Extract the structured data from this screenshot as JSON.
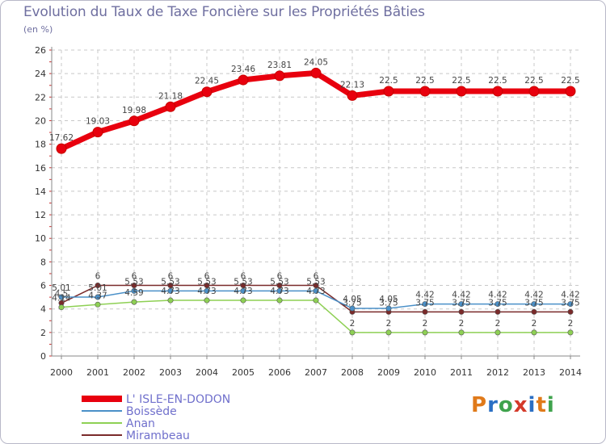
{
  "header": {
    "title": "Evolution du Taux de Taxe Foncière sur les Propriétés Bâties",
    "unit": "(en %)"
  },
  "logo": {
    "text": "Proxiti",
    "letters": [
      "P",
      "r",
      "o",
      "x",
      "i",
      "t",
      "i"
    ],
    "colors": [
      "#e07a1a",
      "#2a6fc4",
      "#3fa34d",
      "#d43a2a",
      "#2a6fc4",
      "#e07a1a",
      "#3fa34d"
    ]
  },
  "chart_data": {
    "type": "line",
    "title": "Evolution du Taux de Taxe Foncière sur les Propriétés Bâties",
    "ylabel": "(en %)",
    "xlabel": "",
    "ylim": [
      0,
      26
    ],
    "yticks": [
      "0",
      "2",
      "4",
      "6",
      "8",
      "10",
      "12",
      "14",
      "16",
      "18",
      "20",
      "22",
      "24",
      "26"
    ],
    "categories": [
      "2000",
      "2001",
      "2002",
      "2003",
      "2004",
      "2005",
      "2006",
      "2007",
      "2008",
      "2009",
      "2010",
      "2011",
      "2012",
      "2013",
      "2014"
    ],
    "grid": true,
    "legend_position": "bottom-left",
    "series": [
      {
        "name": "L' ISLE-EN-DODON",
        "color": "#e8000e",
        "values": [
          17.62,
          19.03,
          19.98,
          21.18,
          22.45,
          23.46,
          23.81,
          24.05,
          22.13,
          22.5,
          22.5,
          22.5,
          22.5,
          22.5,
          22.5
        ],
        "labels": [
          "17.62",
          "19.03",
          "19.98",
          "21.18",
          "22.45",
          "23.46",
          "23.81",
          "24.05",
          "22.13",
          "22.5",
          "22.5",
          "22.5",
          "22.5",
          "22.5",
          "22.5"
        ]
      },
      {
        "name": "Boissède",
        "color": "#4a90c8",
        "values": [
          5.01,
          5.01,
          5.53,
          5.53,
          5.53,
          5.53,
          5.53,
          5.53,
          4.05,
          4.05,
          4.42,
          4.42,
          4.42,
          4.42,
          4.42
        ],
        "labels": [
          "5.01",
          "5.01",
          "5.53",
          "5.53",
          "5.53",
          "5.53",
          "5.53",
          "5.53",
          "4.05",
          "4.05",
          "4.42",
          "4.42",
          "4.42",
          "4.42",
          "4.42"
        ]
      },
      {
        "name": "Anan",
        "color": "#8ed054",
        "values": [
          4.14,
          4.37,
          4.59,
          4.73,
          4.73,
          4.73,
          4.73,
          4.73,
          2,
          2,
          2,
          2,
          2,
          2,
          2
        ],
        "labels": [
          "4.14",
          "4.37",
          "4.59",
          "4.73",
          "4.73",
          "4.73",
          "4.73",
          "4.73",
          "2",
          "2",
          "2",
          "2",
          "2",
          "2",
          "2"
        ]
      },
      {
        "name": "Mirambeau",
        "color": "#7a2a2a",
        "values": [
          4.5,
          6,
          6,
          6,
          6,
          6,
          6,
          6,
          3.75,
          3.75,
          3.75,
          3.75,
          3.75,
          3.75,
          3.75
        ],
        "labels": [
          "4.5",
          "6",
          "6",
          "6",
          "6",
          "6",
          "6",
          "6",
          "3.75",
          "3.75",
          "3.75",
          "3.75",
          "3.75",
          "3.75",
          "3.75"
        ]
      }
    ]
  }
}
